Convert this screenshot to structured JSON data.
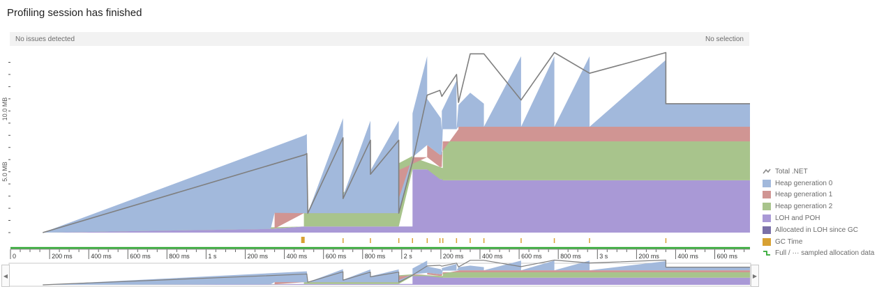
{
  "header": {
    "title": "Profiling session has finished"
  },
  "status": {
    "left": "No issues detected",
    "right": "No selection"
  },
  "chart_data": {
    "type": "area",
    "x_unit": "ms",
    "ylabel_ticks": [
      "5.0 MB",
      "10.0 MB"
    ],
    "y_ticks_mb": [
      5.0,
      10.0
    ],
    "ylim_mb": [
      0,
      14.6
    ],
    "xlim_ms": [
      0,
      3780
    ],
    "x_tick_labels": [
      {
        "t": 0,
        "label": "0"
      },
      {
        "t": 200,
        "label": "200 ms"
      },
      {
        "t": 400,
        "label": "400 ms"
      },
      {
        "t": 600,
        "label": "600 ms"
      },
      {
        "t": 800,
        "label": "800 ms"
      },
      {
        "t": 1000,
        "label": "1 s"
      },
      {
        "t": 1200,
        "label": "200 ms"
      },
      {
        "t": 1400,
        "label": "400 ms"
      },
      {
        "t": 1600,
        "label": "600 ms"
      },
      {
        "t": 1800,
        "label": "800 ms"
      },
      {
        "t": 2000,
        "label": "2 s"
      },
      {
        "t": 2200,
        "label": "200 ms"
      },
      {
        "t": 2400,
        "label": "400 ms"
      },
      {
        "t": 2600,
        "label": "600 ms"
      },
      {
        "t": 2800,
        "label": "800 ms"
      },
      {
        "t": 3000,
        "label": "3 s"
      },
      {
        "t": 3200,
        "label": "200 ms"
      },
      {
        "t": 3400,
        "label": "400 ms"
      },
      {
        "t": 3600,
        "label": "600 ms"
      }
    ],
    "series": [
      {
        "name": "LOH and POH",
        "color": "#a999d6",
        "points": [
          [
            165,
            0
          ],
          [
            1330,
            0.3
          ],
          [
            1500,
            0.5
          ],
          [
            2055,
            0.5
          ],
          [
            2055,
            5.2
          ],
          [
            2195,
            5.2
          ],
          [
            2195,
            4.4
          ],
          [
            2210,
            4.4
          ],
          [
            2210,
            4.3
          ],
          [
            3780,
            4.3
          ]
        ]
      },
      {
        "name": "Heap generation 2",
        "color": "#a8c48c",
        "points": [
          [
            165,
            0
          ],
          [
            1500,
            0
          ],
          [
            1500,
            1.1
          ],
          [
            2055,
            1.1
          ],
          [
            2055,
            1.0
          ],
          [
            2195,
            1.0
          ],
          [
            2195,
            1.0
          ],
          [
            2210,
            1.0
          ],
          [
            2210,
            3.2
          ],
          [
            3780,
            3.2
          ]
        ]
      },
      {
        "name": "Heap generation 1",
        "color": "#d09593",
        "points": [
          [
            165,
            0
          ],
          [
            1350,
            0
          ],
          [
            1350,
            1.3
          ],
          [
            1500,
            1.3
          ],
          [
            1500,
            0
          ],
          [
            2130,
            0
          ],
          [
            2130,
            1.0
          ],
          [
            2195,
            1.0
          ],
          [
            2195,
            1.0
          ],
          [
            2290,
            1.0
          ],
          [
            2290,
            1.2
          ],
          [
            3780,
            1.2
          ]
        ]
      },
      {
        "name": "Heap generation 0",
        "color": "#a2b9dc",
        "points": [
          [
            165,
            0
          ],
          [
            1505,
            6.4
          ],
          [
            1515,
            6.5
          ],
          [
            1520,
            0
          ],
          [
            1700,
            7.8
          ],
          [
            1700,
            1.4
          ],
          [
            1840,
            7.6
          ],
          [
            1840,
            3.5
          ],
          [
            1985,
            7.6
          ],
          [
            1985,
            1.2
          ],
          [
            2055,
            0
          ],
          [
            2055,
            3.6
          ],
          [
            2130,
            7.3
          ],
          [
            2130,
            3.8
          ],
          [
            2200,
            3.0
          ],
          [
            2205,
            2.0
          ],
          [
            2205,
            3.6
          ],
          [
            2280,
            4.0
          ],
          [
            2280,
            0
          ],
          [
            2290,
            1.8
          ],
          [
            2350,
            2.8
          ],
          [
            2420,
            1.9
          ],
          [
            2420,
            0
          ],
          [
            2610,
            5.8
          ],
          [
            2610,
            0
          ],
          [
            2780,
            5.8
          ],
          [
            2780,
            0
          ],
          [
            2960,
            5.8
          ],
          [
            2960,
            0
          ],
          [
            3350,
            5.5
          ],
          [
            3350,
            1.9
          ],
          [
            3780,
            1.9
          ]
        ]
      },
      {
        "name": "Total .NET",
        "color": "#7f7f7f",
        "points": [
          [
            165,
            0
          ],
          [
            1505,
            6.4
          ],
          [
            1515,
            6.5
          ],
          [
            1520,
            1.6
          ],
          [
            1700,
            7.8
          ],
          [
            1700,
            2.8
          ],
          [
            1840,
            7.6
          ],
          [
            1840,
            4.8
          ],
          [
            1985,
            7.6
          ],
          [
            1985,
            1.6
          ],
          [
            2055,
            5.8
          ],
          [
            2130,
            11.3
          ],
          [
            2195,
            11.7
          ],
          [
            2195,
            11.7
          ],
          [
            2205,
            11.2
          ],
          [
            2280,
            13.0
          ],
          [
            2290,
            10.7
          ],
          [
            2350,
            14.7
          ],
          [
            2420,
            14.7
          ],
          [
            2610,
            10.9
          ],
          [
            2780,
            14.8
          ],
          [
            2960,
            13.1
          ],
          [
            3350,
            14.8
          ],
          [
            3350,
            10.6
          ],
          [
            3780,
            10.6
          ]
        ]
      }
    ],
    "gc_events_ms": [
      1495,
      1700,
      1840,
      1985,
      2055,
      2130,
      2195,
      2210,
      2280,
      2350,
      2420,
      2610,
      2780,
      2960,
      3350
    ],
    "legend": [
      "Total .NET",
      "Heap generation 0",
      "Heap generation 1",
      "Heap generation 2",
      "LOH and POH",
      "Allocated in LOH since GC",
      "GC Time",
      "Full / ··· sampled allocation data"
    ],
    "legend_colors": [
      "#8c8c8c",
      "#a2b9dc",
      "#d09593",
      "#a8c48c",
      "#a999d6",
      "#7a70a8",
      "#d8a133",
      "#2fa832"
    ]
  }
}
